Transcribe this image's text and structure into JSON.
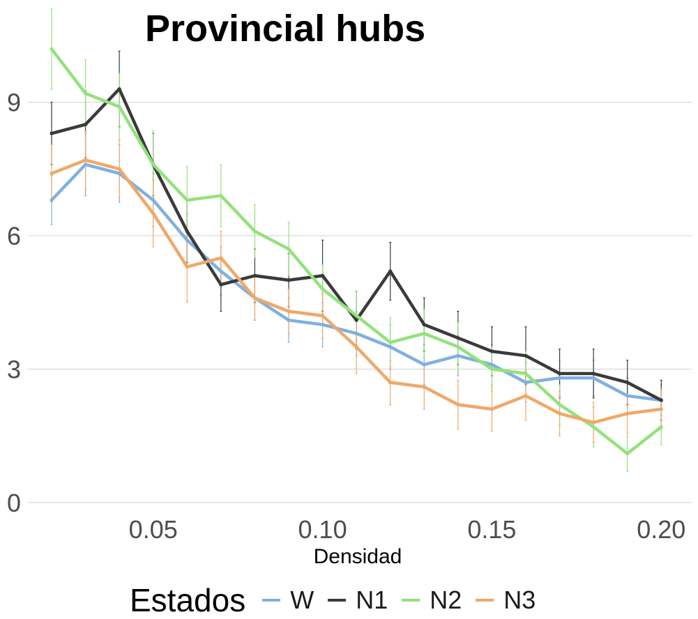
{
  "chart_data": {
    "type": "line",
    "title": "Provincial hubs",
    "xlabel": "Densidad",
    "ylabel": "",
    "xlim": [
      0.013,
      0.209
    ],
    "ylim": [
      -0.3,
      11.3
    ],
    "x_ticks": [
      0.05,
      0.1,
      0.15,
      0.2
    ],
    "x_tick_labels": [
      "0.05",
      "0.10",
      "0.15",
      "0.20"
    ],
    "y_ticks": [
      0,
      3,
      6,
      9
    ],
    "y_tick_labels": [
      "0",
      "3",
      "6",
      "9"
    ],
    "grid": true,
    "legend_title": "Estados",
    "legend_position": "bottom",
    "x": [
      0.02,
      0.03,
      0.04,
      0.05,
      0.06,
      0.07,
      0.08,
      0.09,
      0.1,
      0.11,
      0.12,
      0.13,
      0.14,
      0.15,
      0.16,
      0.17,
      0.18,
      0.19,
      0.2
    ],
    "series": [
      {
        "name": "W",
        "color": "#7fb0e0",
        "values": [
          6.8,
          7.6,
          7.4,
          6.8,
          5.9,
          5.2,
          4.6,
          4.1,
          4.0,
          3.8,
          3.5,
          3.1,
          3.3,
          3.1,
          2.7,
          2.8,
          2.8,
          2.4,
          2.3
        ],
        "error": [
          0.55,
          0.7,
          0.65,
          0.6,
          0.6,
          0.55,
          0.5,
          0.5,
          0.5,
          0.5,
          0.5,
          0.45,
          0.45,
          0.45,
          0.45,
          0.4,
          0.4,
          0.4,
          0.35
        ]
      },
      {
        "name": "N1",
        "color": "#3a3a3a",
        "values": [
          8.3,
          8.5,
          9.3,
          7.6,
          6.1,
          4.9,
          5.1,
          5.0,
          5.1,
          4.1,
          5.2,
          4.0,
          3.7,
          3.4,
          3.3,
          2.9,
          2.9,
          2.7,
          2.3
        ],
        "error": [
          0.7,
          0.75,
          0.85,
          0.7,
          0.7,
          0.6,
          0.6,
          0.6,
          0.8,
          0.65,
          0.65,
          0.6,
          0.6,
          0.55,
          0.65,
          0.55,
          0.55,
          0.5,
          0.45
        ]
      },
      {
        "name": "N2",
        "color": "#93e27c",
        "values": [
          10.2,
          9.2,
          8.9,
          7.6,
          6.8,
          6.9,
          6.1,
          5.7,
          4.8,
          4.2,
          3.6,
          3.8,
          3.5,
          3.0,
          2.9,
          2.2,
          1.7,
          1.1,
          1.7
        ],
        "error": [
          0.9,
          0.75,
          0.75,
          0.75,
          0.75,
          0.7,
          0.6,
          0.6,
          0.55,
          0.55,
          0.55,
          0.55,
          0.55,
          0.5,
          0.5,
          0.45,
          0.45,
          0.4,
          0.4
        ]
      },
      {
        "name": "N3",
        "color": "#f0a868",
        "values": [
          7.4,
          7.7,
          7.5,
          6.5,
          5.3,
          5.5,
          4.6,
          4.3,
          4.2,
          3.5,
          2.7,
          2.6,
          2.2,
          2.1,
          2.4,
          2.0,
          1.8,
          2.0,
          2.1
        ],
        "error": [
          0.65,
          0.65,
          0.65,
          0.75,
          0.8,
          0.6,
          0.5,
          0.5,
          0.5,
          0.6,
          0.5,
          0.5,
          0.55,
          0.5,
          0.55,
          0.5,
          0.45,
          0.45,
          0.45
        ]
      }
    ]
  }
}
